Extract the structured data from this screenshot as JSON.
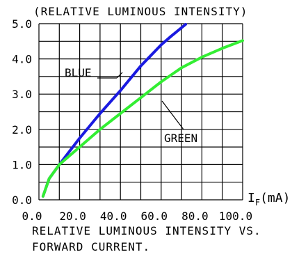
{
  "chart_data": {
    "type": "line",
    "title": "(RELATIVE LUMINOUS INTENSITY)",
    "xlabel_main": "I",
    "xlabel_sub": "F",
    "xlabel_unit": "(mA)",
    "xlim": [
      0,
      100
    ],
    "ylim": [
      0,
      5
    ],
    "x_ticks": [
      "0.0",
      "20.0",
      "40.0",
      "60.0",
      "80.0",
      "100.0"
    ],
    "x_tick_values": [
      0,
      20,
      40,
      60,
      80,
      100
    ],
    "y_ticks": [
      "0.0",
      "1.0",
      "2.0",
      "3.0",
      "4.0",
      "5.0"
    ],
    "y_tick_values": [
      0,
      1,
      2,
      3,
      4,
      5
    ],
    "grid": true,
    "series": [
      {
        "name": "BLUE",
        "color": "#1a1ae0",
        "x": [
          2,
          5,
          10,
          20,
          30,
          40,
          50,
          60,
          65,
          72
        ],
        "y": [
          0.1,
          0.6,
          1.0,
          1.75,
          2.45,
          3.1,
          3.8,
          4.4,
          4.65,
          4.98
        ]
      },
      {
        "name": "GREEN",
        "color": "#33ee33",
        "x": [
          2,
          5,
          10,
          20,
          30,
          40,
          50,
          60,
          70,
          80,
          90,
          100
        ],
        "y": [
          0.1,
          0.6,
          1.0,
          1.5,
          2.0,
          2.45,
          2.9,
          3.35,
          3.75,
          4.05,
          4.3,
          4.52
        ]
      }
    ]
  },
  "caption": {
    "line1": "RELATIVE LUMINOUS INTENSITY VS.",
    "line2": "FORWARD CURRENT."
  }
}
